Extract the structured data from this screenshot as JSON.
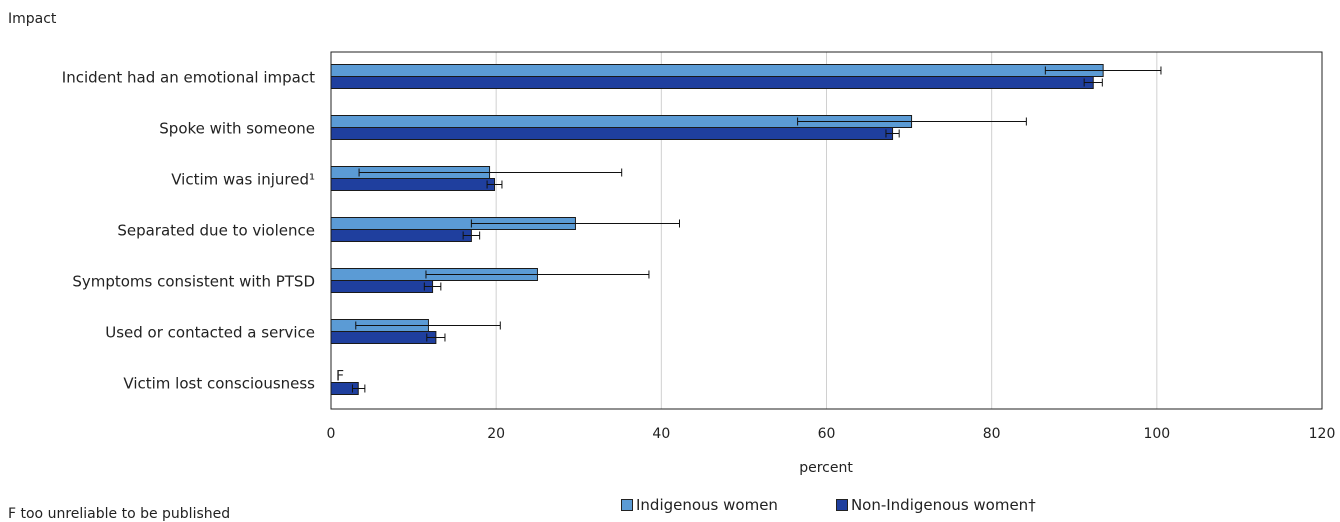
{
  "chart_data": {
    "type": "bar",
    "orientation": "horizontal",
    "y_axis_title": "Impact",
    "xlabel": "percent",
    "xlim": [
      0,
      120
    ],
    "xticks": [
      0,
      20,
      40,
      60,
      80,
      100,
      120
    ],
    "grid": true,
    "legend_position": "bottom",
    "categories": [
      "Incident had an emotional impact",
      "Spoke with someone",
      "Victim was injured¹",
      "Separated due to violence",
      "Symptoms consistent with PTSD",
      "Used or contacted a service",
      "Victim lost consciousness"
    ],
    "series": [
      {
        "name": "Indigenous women",
        "color": "#5b9bd5",
        "values": [
          93.5,
          70.3,
          19.2,
          29.6,
          25.0,
          11.8,
          null
        ],
        "ci_low": [
          86.5,
          56.5,
          3.4,
          17.0,
          11.5,
          3.0,
          null
        ],
        "ci_high": [
          100.5,
          84.2,
          35.2,
          42.2,
          38.5,
          20.5,
          null
        ],
        "labels": [
          "",
          "",
          "",
          "",
          "",
          "",
          "F"
        ]
      },
      {
        "name": "Non-Indigenous women†",
        "color": "#1f3f9e",
        "values": [
          92.3,
          68.0,
          19.8,
          17.0,
          12.3,
          12.7,
          3.3
        ],
        "ci_low": [
          91.2,
          67.2,
          18.9,
          16.0,
          11.3,
          11.6,
          2.6
        ],
        "ci_high": [
          93.4,
          68.8,
          20.7,
          18.0,
          13.3,
          13.8,
          4.1
        ],
        "labels": [
          "",
          "",
          "",
          "",
          "",
          "",
          ""
        ]
      }
    ]
  },
  "footnote": "F too unreliable to be published"
}
